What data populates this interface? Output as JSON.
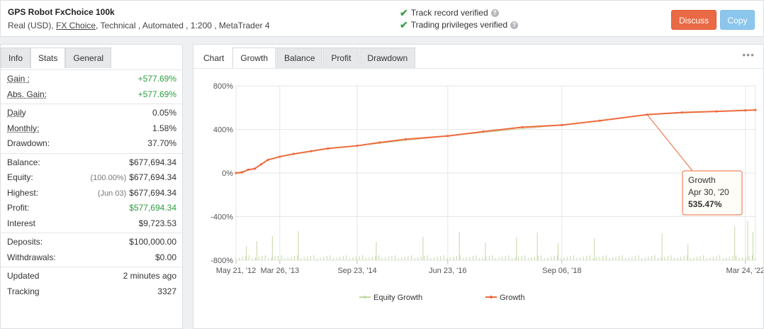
{
  "header": {
    "title": "GPS Robot FxChoice 100k",
    "account_type": "Real (USD), ",
    "broker": "FX Choice",
    "details": ", Technical , Automated , 1:200 , MetaTrader 4",
    "verified": [
      "Track record verified",
      "Trading privileges verified"
    ],
    "discuss_label": "Discuss",
    "copy_label": "Copy"
  },
  "left_tabs": [
    "Info",
    "Stats",
    "General"
  ],
  "stats": {
    "gain": {
      "label": "Gain :",
      "value": "+577.69%"
    },
    "abs_gain": {
      "label": "Abs. Gain:",
      "value": "+577.69%"
    },
    "daily": {
      "label": "Daily",
      "value": "0.05%"
    },
    "monthly": {
      "label": "Monthly:",
      "value": "1.58%"
    },
    "drawdown": {
      "label": "Drawdown:",
      "value": "37.70%"
    },
    "balance": {
      "label": "Balance:",
      "value": "$677,694.34"
    },
    "equity": {
      "label": "Equity:",
      "pre": "(100.00%)",
      "value": "$677,694.34"
    },
    "highest": {
      "label": "Highest:",
      "pre": "(Jun 03)",
      "value": "$677,694.34"
    },
    "profit": {
      "label": "Profit:",
      "value": "$577,694.34"
    },
    "interest": {
      "label": "Interest",
      "value": "$9,723.53"
    },
    "deposits": {
      "label": "Deposits:",
      "value": "$100,000.00"
    },
    "withdrawals": {
      "label": "Withdrawals:",
      "value": "$0.00"
    },
    "updated": {
      "label": "Updated",
      "value": "2 minutes ago"
    },
    "tracking": {
      "label": "Tracking",
      "value": "3327"
    }
  },
  "chart_tabs": [
    "Chart",
    "Growth",
    "Balance",
    "Profit",
    "Drawdown"
  ],
  "colors": {
    "growth": "#ee6a3c",
    "equity": "#c4d8a4",
    "discuss": "#ea6a45",
    "copy": "#8dc6ec",
    "positive": "#2e9e3e"
  },
  "chart_data": {
    "type": "line",
    "y_ticks": [
      "800%",
      "400%",
      "0%",
      "-400%",
      "-800%"
    ],
    "ylim": [
      -800,
      800
    ],
    "x_ticks": [
      "May 21, '12",
      "Mar 26, '13",
      "Sep 23, '14",
      "Jun 23, '16",
      "Sep 06, '18",
      "Mar 24, '22"
    ],
    "x_tick_dates": [
      "2012-05-21",
      "2013-03-26",
      "2014-09-23",
      "2016-06-23",
      "2018-09-06",
      "2022-03-24"
    ],
    "series": [
      {
        "name": "Growth",
        "x": [
          "2012-05-21",
          "2012-07-01",
          "2012-08-15",
          "2012-10-01",
          "2012-11-15",
          "2013-01-01",
          "2013-03-26",
          "2013-07-01",
          "2013-11-01",
          "2014-03-01",
          "2014-09-23",
          "2015-03-01",
          "2015-09-01",
          "2016-06-23",
          "2017-03-01",
          "2017-12-01",
          "2018-09-06",
          "2019-06-01",
          "2020-04-30",
          "2021-01-01",
          "2021-09-01",
          "2022-03-24",
          "2022-06-03"
        ],
        "values": [
          0,
          5,
          30,
          40,
          80,
          120,
          150,
          175,
          200,
          225,
          250,
          280,
          310,
          340,
          380,
          420,
          440,
          480,
          535.47,
          555,
          565,
          575,
          577.69
        ]
      },
      {
        "name": "Equity Growth",
        "x": [
          "2012-05-21",
          "2012-08-15",
          "2012-10-01",
          "2013-01-01",
          "2013-03-26",
          "2014-03-01",
          "2014-09-23",
          "2016-06-23",
          "2018-09-06",
          "2020-04-30",
          "2022-03-24",
          "2022-06-03"
        ],
        "values": [
          0,
          30,
          40,
          120,
          150,
          225,
          250,
          340,
          440,
          535.47,
          575,
          577.69
        ]
      }
    ],
    "legend": [
      "Equity Growth",
      "Growth"
    ],
    "legend_position": "bottom",
    "tooltip": {
      "title": "Growth",
      "date": "Apr 30, '20",
      "value": "535.47%"
    }
  }
}
